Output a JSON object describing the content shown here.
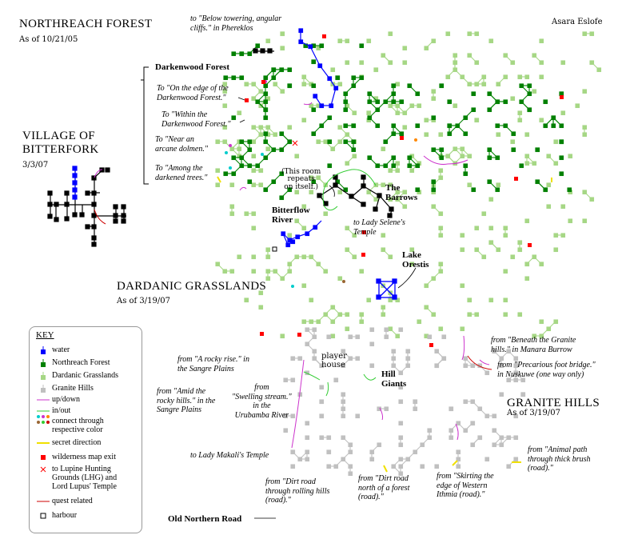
{
  "author": "Asara Eslofe",
  "regions": {
    "northreach": {
      "title": "NORTHREACH FOREST",
      "date": "As of 10/21/05"
    },
    "bitterfork": {
      "title": "VILLAGE OF\nBITTERFORK",
      "date": "3/3/07"
    },
    "dardanic": {
      "title": "DARDANIC GRASSLANDS",
      "date": "As of 3/19/07"
    },
    "granite": {
      "title": "GRANITE HILLS",
      "date": "As of 3/19/07"
    }
  },
  "places": {
    "darkenwood": "Darkenwood Forest",
    "barrows": "The\nBarrows",
    "bitterflow": "Bitterflow\nRiver",
    "lake": "Lake\nOrestis",
    "hill_giants": "Hill\nGiants",
    "player_house": "player\nhouse",
    "old_road": "Old Northern Road",
    "repeats": "(This room\nrepeats\non itself.)"
  },
  "notes": {
    "phereklos": "to \"Below towering, angular\ncliffs.\" in Phereklos",
    "edge_darkenwood": "To \"On the edge of the\nDarkenwood Forest.\"",
    "within_darkenwood": "To \"Within the\nDarkenwood Forest.\"",
    "arcane_dolmen": "To \"Near an\narcane dolmen.\"",
    "darkened_trees": "To \"Among the\ndarkened trees.\"",
    "lady_selene": "to Lady Selene's\nTemple",
    "rocky_rise": "from \"A rocky rise.\" in\nthe Sangre Plains",
    "rocky_hills": "from \"Amid the\nrocky hills.\" in the\nSangre Plains",
    "swelling_stream": "from\n\"Swelling stream.\"\nin the\nUrubamba River",
    "lady_makali": "to Lady Makali's Temple",
    "dirt_rolling": "from \"Dirt road\nthrough rolling hills\n(road).\"",
    "dirt_forest": "from \"Dirt road\nnorth of a forest\n(road).\"",
    "skirting": "from \"Skirting the\nedge of Western\nIthmia (road).\"",
    "animal_path": "from \"Animal path\nthrough thick brush\n(road).\"",
    "granite_burrow": "from \"Beneath the Granite\nhills.\" in Manara Burrow",
    "foot_bridge": "from \"Precarious foot bridge.\"\nin Nuskuwe (one way only)"
  },
  "key": {
    "title": "KEY",
    "items": [
      {
        "label": "water",
        "symbol": "water-room-icon",
        "color": "#0000ff"
      },
      {
        "label": "Northreach Forest",
        "symbol": "forest-room-icon",
        "color": "#008000"
      },
      {
        "label": "Dardanic Grasslands",
        "symbol": "grassland-room-icon",
        "color": "#a6d785"
      },
      {
        "label": "Granite Hills",
        "symbol": "hills-room-icon",
        "color": "#c0c0c0"
      },
      {
        "label": "up/down",
        "symbol": "updown-line-icon",
        "color": "#cc33cc"
      },
      {
        "label": "in/out",
        "symbol": "inout-line-icon",
        "color": "#33cc33"
      },
      {
        "label": "connect through\nrespective color",
        "symbol": "color-dots-icon",
        "color": "#00cccc"
      },
      {
        "label": "secret direction",
        "symbol": "secret-line-icon",
        "color": "#ffff00"
      },
      {
        "label": "wilderness map exit",
        "symbol": "map-exit-icon",
        "color": "#ff0000"
      },
      {
        "label": "to Lupine Hunting\nGrounds (LHG) and\nLord Lupus' Temple",
        "symbol": "lupine-cross-icon",
        "color": "#ff0000"
      },
      {
        "label": "quest related",
        "symbol": "quest-line-icon",
        "color": "#cc0000"
      },
      {
        "label": "harbour",
        "symbol": "harbour-icon",
        "color": "#000000"
      }
    ]
  },
  "colors": {
    "water": "#0000ff",
    "forest": "#008000",
    "grassland": "#a6d785",
    "hills": "#c0c0c0",
    "updown": "#cc33cc",
    "inout": "#33cc33",
    "secret": "#ffff00",
    "exit": "#ff0000",
    "village": "#000000"
  }
}
